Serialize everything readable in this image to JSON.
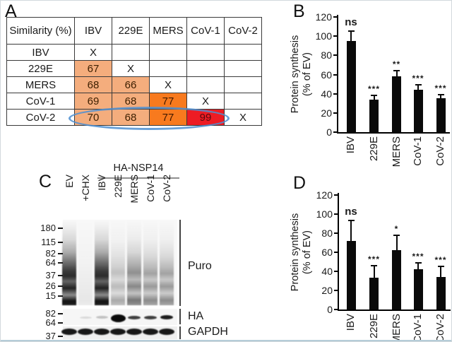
{
  "panels": {
    "a": {
      "label": "A",
      "table": {
        "header": [
          "Similarity (%)",
          "IBV",
          "229E",
          "MERS",
          "CoV-1",
          "CoV-2"
        ],
        "rows": [
          {
            "label": "IBV",
            "cells": [
              "X",
              "",
              "",
              "",
              ""
            ],
            "colors": [
              "",
              "",
              "",
              "",
              ""
            ]
          },
          {
            "label": "229E",
            "cells": [
              "67",
              "X",
              "",
              "",
              ""
            ],
            "colors": [
              "l",
              "",
              "",
              "",
              ""
            ]
          },
          {
            "label": "MERS",
            "cells": [
              "68",
              "66",
              "X",
              "",
              ""
            ],
            "colors": [
              "l",
              "l",
              "",
              "",
              ""
            ]
          },
          {
            "label": "CoV-1",
            "cells": [
              "69",
              "68",
              "77",
              "X",
              ""
            ],
            "colors": [
              "l",
              "l",
              "m",
              "",
              ""
            ]
          },
          {
            "label": "CoV-2",
            "cells": [
              "70",
              "68",
              "77",
              "99",
              "X"
            ],
            "colors": [
              "l",
              "l",
              "m",
              "h",
              ""
            ]
          }
        ],
        "colors": {
          "light_orange": "#F4AD7D",
          "orange": "#F87A1E",
          "red": "#ED1C24",
          "ellipse_blue": "#4d8fd1"
        }
      }
    },
    "b": {
      "label": "B"
    },
    "c": {
      "label": "C",
      "group_label": "HA-NSP14",
      "lanes": [
        "EV",
        "+CHX",
        "IBV",
        "229E",
        "MERS",
        "CoV-1",
        "CoV-2"
      ],
      "blots": [
        {
          "name": "Puro",
          "markers": [
            "180",
            "115",
            "82",
            "64",
            "37",
            "26",
            "15"
          ],
          "lane_smear": [
            "dark",
            "blank",
            "dark",
            "light",
            "medium",
            "mlight",
            "mlight"
          ]
        },
        {
          "name": "HA",
          "markers": [
            "82",
            "64"
          ],
          "bands": [
            "none",
            "vfaint",
            "faint",
            "thick",
            "medium",
            "medium",
            "dark"
          ]
        },
        {
          "name": "GAPDH",
          "markers": [
            "37"
          ],
          "bands": [
            "dark",
            "dark",
            "dark",
            "dark",
            "dark",
            "dark",
            "dark"
          ]
        }
      ]
    },
    "d": {
      "label": "D"
    }
  },
  "chart_data": [
    {
      "panel": "B",
      "type": "bar",
      "categories": [
        "IBV",
        "229E",
        "MERS",
        "CoV-1",
        "CoV-2"
      ],
      "values": [
        95,
        34,
        58,
        44,
        35
      ],
      "errors": [
        10,
        4,
        6,
        5,
        4
      ],
      "annotations": [
        "ns",
        "***",
        "**",
        "***",
        "***"
      ],
      "ylabel_line1": "Protein synthesis",
      "ylabel_line2": "(% of EV)",
      "ylim": [
        0,
        120
      ],
      "ytick_step": 20,
      "bar_color": "#0a0a0a"
    },
    {
      "panel": "D",
      "type": "bar",
      "categories": [
        "IBV",
        "229E",
        "MERS",
        "CoV-1",
        "CoV-2"
      ],
      "values": [
        72,
        33,
        62,
        42,
        34
      ],
      "errors": [
        21,
        13,
        16,
        7,
        11
      ],
      "annotations": [
        "ns",
        "***",
        "*",
        "***",
        "***"
      ],
      "ylabel_line1": "Protein synthesis",
      "ylabel_line2": "(% of EV)",
      "ylim": [
        0,
        120
      ],
      "ytick_step": 20,
      "bar_color": "#0a0a0a"
    }
  ]
}
